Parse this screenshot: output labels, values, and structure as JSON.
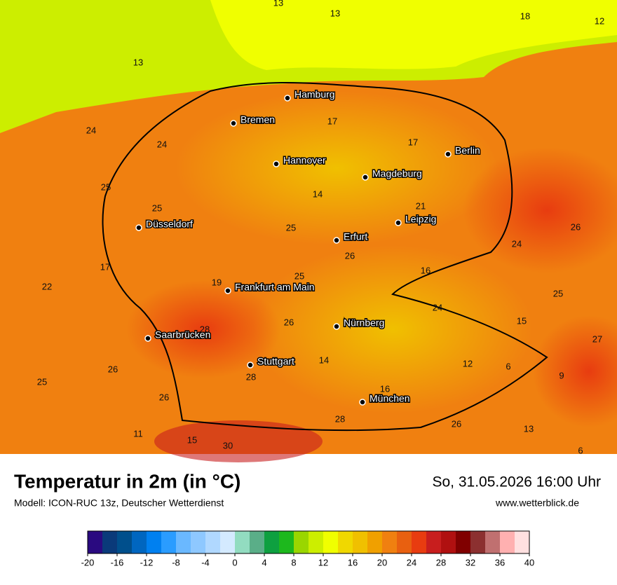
{
  "header": {
    "title": "Temperatur in 2m (in °C)",
    "subtitle": "Modell: ICON-RUC 13z, Deutscher Wetterdienst",
    "datetime": "So, 31.05.2026 16:00 Uhr",
    "website": "www.wetterblick.de"
  },
  "map": {
    "cities": [
      "Hamburg",
      "Bremen",
      "Hannover",
      "Berlin",
      "Magdeburg",
      "Leipzig",
      "Düsseldorf",
      "Erfurt",
      "Frankfurt am Main",
      "Nürnberg",
      "Saarbrücken",
      "Stuttgart",
      "München"
    ],
    "values": [
      13,
      13,
      18,
      12,
      13,
      17,
      24,
      24,
      17,
      25,
      14,
      25,
      21,
      25,
      26,
      24,
      26,
      17,
      16,
      25,
      19,
      22,
      25,
      24,
      28,
      26,
      15,
      27,
      26,
      14,
      12,
      6,
      9,
      28,
      25,
      16,
      26,
      28,
      26,
      13,
      11,
      15,
      30,
      6
    ]
  },
  "colorbar": {
    "lim": [
      -20,
      40
    ],
    "ticks": [
      -20,
      -16,
      -12,
      -8,
      -4,
      0,
      4,
      8,
      12,
      16,
      20,
      24,
      28,
      32,
      36,
      40
    ],
    "colors": [
      "#2a0a80",
      "#0a3a7a",
      "#004f8c",
      "#0066c0",
      "#0080f0",
      "#2a9cff",
      "#6ab8ff",
      "#8ec8ff",
      "#b0d8ff",
      "#d4eaff",
      "#92dcc0",
      "#5aae88",
      "#0ea040",
      "#1db81d",
      "#9ad600",
      "#ccee00",
      "#f0ff00",
      "#f0d800",
      "#f0c000",
      "#f0a000",
      "#f08010",
      "#e86010",
      "#e83c10",
      "#c81e1e",
      "#b01010",
      "#800000",
      "#8c3030",
      "#c07070",
      "#ffb0b0",
      "#ffe0e0"
    ]
  }
}
